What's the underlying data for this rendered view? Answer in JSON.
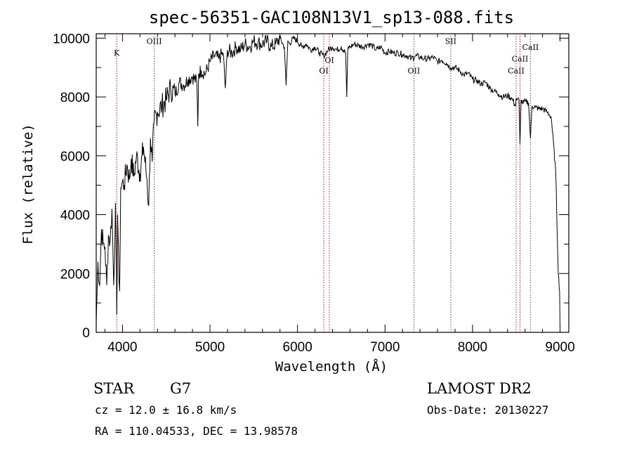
{
  "chart_data": {
    "type": "line",
    "title": "spec-56351-GAC108N13V1_sp13-088.fits",
    "xlabel": "Wavelength (Å)",
    "ylabel": "Flux (relative)",
    "xlim": [
      3700,
      9100
    ],
    "ylim": [
      0,
      10150
    ],
    "xticks": [
      4000,
      5000,
      6000,
      7000,
      8000,
      9000
    ],
    "yticks": [
      0,
      2000,
      4000,
      6000,
      8000,
      10000
    ],
    "grid": false,
    "series": [
      {
        "name": "flux",
        "x": [
          3700,
          3720,
          3740,
          3760,
          3780,
          3800,
          3820,
          3840,
          3860,
          3880,
          3900,
          3920,
          3935,
          3945,
          3960,
          3968,
          3980,
          4000,
          4020,
          4050,
          4080,
          4100,
          4130,
          4160,
          4200,
          4240,
          4280,
          4300,
          4320,
          4340,
          4360,
          4400,
          4450,
          4500,
          4550,
          4600,
          4650,
          4700,
          4750,
          4800,
          4850,
          4861,
          4870,
          4900,
          4950,
          5000,
          5050,
          5100,
          5150,
          5175,
          5200,
          5250,
          5300,
          5350,
          5400,
          5450,
          5500,
          5550,
          5600,
          5650,
          5700,
          5750,
          5800,
          5850,
          5870,
          5890,
          5910,
          5950,
          6000,
          6050,
          6100,
          6150,
          6200,
          6250,
          6300,
          6350,
          6400,
          6450,
          6500,
          6550,
          6563,
          6575,
          6600,
          6650,
          6700,
          6750,
          6800,
          6850,
          6900,
          6950,
          7000,
          7050,
          7100,
          7150,
          7200,
          7250,
          7300,
          7350,
          7400,
          7450,
          7500,
          7550,
          7600,
          7650,
          7700,
          7750,
          7800,
          7850,
          7900,
          7950,
          8000,
          8050,
          8100,
          8150,
          8200,
          8250,
          8300,
          8350,
          8400,
          8450,
          8490,
          8498,
          8510,
          8530,
          8542,
          8555,
          8580,
          8610,
          8640,
          8662,
          8680,
          8720,
          8760,
          8800,
          8850,
          8880,
          8900,
          8950,
          8980,
          8995,
          9000
        ],
        "y": [
          300,
          2400,
          1600,
          3500,
          3000,
          2900,
          1600,
          3300,
          3100,
          4200,
          1600,
          4400,
          600,
          4000,
          1800,
          1400,
          4900,
          5100,
          5000,
          5700,
          5200,
          5900,
          5300,
          6000,
          5400,
          6300,
          5200,
          4300,
          6600,
          5800,
          7100,
          7500,
          7700,
          7900,
          8300,
          8100,
          8500,
          8400,
          8600,
          8700,
          8500,
          7000,
          8800,
          8900,
          8800,
          9200,
          9400,
          9300,
          9500,
          8300,
          9600,
          9500,
          9700,
          9600,
          9800,
          9700,
          9900,
          9850,
          9800,
          9900,
          9700,
          9800,
          10000,
          9700,
          8400,
          9900,
          9800,
          10000,
          9900,
          9700,
          9800,
          9600,
          9700,
          9500,
          9400,
          9600,
          9700,
          9600,
          9700,
          9500,
          8000,
          9650,
          9700,
          9800,
          9750,
          9700,
          9800,
          9750,
          9600,
          9700,
          9500,
          9550,
          9500,
          9500,
          9450,
          9400,
          9300,
          9400,
          9350,
          9300,
          9300,
          9350,
          9200,
          9250,
          9150,
          9000,
          9000,
          8900,
          8750,
          8800,
          8600,
          8550,
          8450,
          8500,
          8300,
          8200,
          8100,
          8000,
          8050,
          7950,
          7700,
          7950,
          7900,
          7900,
          6400,
          7900,
          7800,
          7850,
          7800,
          6600,
          7700,
          7650,
          7600,
          7600,
          7500,
          7400,
          7300,
          5500,
          2000,
          1400,
          200
        ]
      }
    ],
    "annotations": [
      {
        "label": "K",
        "x": 3934,
        "label_y": 9500
      },
      {
        "label": "OIII",
        "x": 4363,
        "label_y": 9900
      },
      {
        "label": "OI",
        "x": 6300,
        "label_y": 8900
      },
      {
        "label": "OI",
        "x": 6364,
        "label_y": 9250
      },
      {
        "label": "OII",
        "x": 7330,
        "label_y": 8900
      },
      {
        "label": "SII",
        "x": 7751,
        "label_y": 9900
      },
      {
        "label": "CaII",
        "x": 8498,
        "label_y": 8900
      },
      {
        "label": "CaII",
        "x": 8542,
        "label_y": 9300
      },
      {
        "label": "CaII",
        "x": 8662,
        "label_y": 9700
      }
    ]
  },
  "info": {
    "object_class": "STAR",
    "subclass": "G7",
    "survey": "LAMOST DR2",
    "redshift_line": "cz = 12.0 ± 16.8 km/s",
    "obs_date": "Obs-Date: 20130227",
    "coords": "RA = 110.04533, DEC =  13.98578"
  },
  "colors": {
    "axes": "#000000",
    "spectrum": "#000000",
    "line_markers": "#b22222",
    "background": "#ffffff"
  }
}
